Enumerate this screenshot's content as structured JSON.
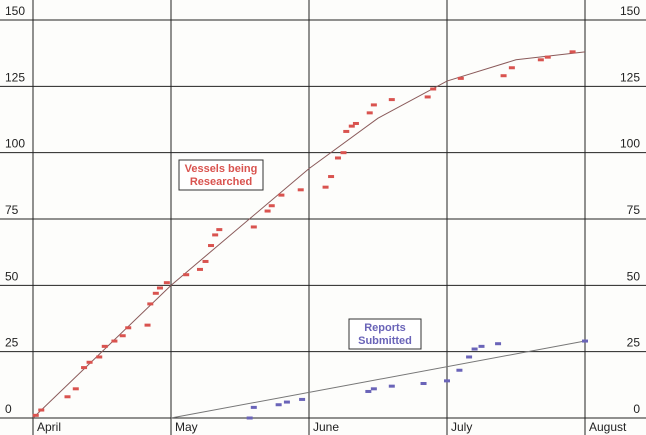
{
  "chart_data": {
    "type": "scatter",
    "title": "",
    "xlabel": "",
    "ylabel": "",
    "ylim": [
      0,
      150
    ],
    "xlim": [
      0,
      4
    ],
    "grid": true,
    "yticks": [
      0,
      25,
      50,
      75,
      100,
      125,
      150
    ],
    "ytick_labels": [
      "0",
      "25",
      "50",
      "75",
      "100",
      "125",
      "150"
    ],
    "xticks": [
      0,
      1,
      2,
      3,
      4
    ],
    "xtick_labels": [
      "April",
      "May",
      "June",
      "July",
      "August"
    ],
    "colors": {
      "vessels": "#d9534f",
      "reports": "#6a64b8",
      "grid": "#222222",
      "trend": "#8a5a5a",
      "trend2": "#777777"
    },
    "series": [
      {
        "name": "Vessels being Researched",
        "label_lines": [
          "Vessels being",
          "Researched"
        ],
        "color": "#d9534f",
        "points": [
          [
            0.02,
            1
          ],
          [
            0.06,
            3
          ],
          [
            0.25,
            8
          ],
          [
            0.31,
            11
          ],
          [
            0.37,
            19
          ],
          [
            0.41,
            21
          ],
          [
            0.48,
            23
          ],
          [
            0.52,
            27
          ],
          [
            0.59,
            29
          ],
          [
            0.65,
            31
          ],
          [
            0.69,
            34
          ],
          [
            0.83,
            35
          ],
          [
            0.85,
            43
          ],
          [
            0.89,
            47
          ],
          [
            0.92,
            49
          ],
          [
            0.97,
            51
          ],
          [
            1.11,
            54
          ],
          [
            1.21,
            56
          ],
          [
            1.25,
            59
          ],
          [
            1.29,
            65
          ],
          [
            1.32,
            69
          ],
          [
            1.35,
            71
          ],
          [
            1.6,
            72
          ],
          [
            1.7,
            78
          ],
          [
            1.73,
            80
          ],
          [
            1.8,
            84
          ],
          [
            1.94,
            86
          ],
          [
            2.12,
            87
          ],
          [
            2.16,
            91
          ],
          [
            2.21,
            98
          ],
          [
            2.25,
            100
          ],
          [
            2.27,
            108
          ],
          [
            2.31,
            110
          ],
          [
            2.34,
            111
          ],
          [
            2.44,
            115
          ],
          [
            2.47,
            118
          ],
          [
            2.6,
            120
          ],
          [
            2.86,
            121
          ],
          [
            2.9,
            124
          ],
          [
            3.1,
            128
          ],
          [
            3.41,
            129
          ],
          [
            3.47,
            132
          ],
          [
            3.68,
            135
          ],
          [
            3.73,
            136
          ],
          [
            3.91,
            138
          ]
        ],
        "trend": [
          [
            0,
            0
          ],
          [
            1,
            50
          ],
          [
            2,
            94
          ],
          [
            2.5,
            113
          ],
          [
            3,
            127
          ],
          [
            3.5,
            135
          ],
          [
            4,
            138
          ]
        ]
      },
      {
        "name": "Reports Submitted",
        "label_lines": [
          "Reports",
          "Submitted"
        ],
        "color": "#6a64b8",
        "points": [
          [
            1.57,
            0
          ],
          [
            1.6,
            4
          ],
          [
            1.78,
            5
          ],
          [
            1.84,
            6
          ],
          [
            1.95,
            7
          ],
          [
            2.43,
            10
          ],
          [
            2.47,
            11
          ],
          [
            2.6,
            12
          ],
          [
            2.83,
            13
          ],
          [
            3.0,
            14
          ],
          [
            3.09,
            18
          ],
          [
            3.16,
            23
          ],
          [
            3.2,
            26
          ],
          [
            3.25,
            27
          ],
          [
            3.37,
            28
          ],
          [
            4.0,
            29
          ]
        ],
        "trend": [
          [
            1,
            0
          ],
          [
            4,
            29
          ]
        ]
      }
    ]
  }
}
